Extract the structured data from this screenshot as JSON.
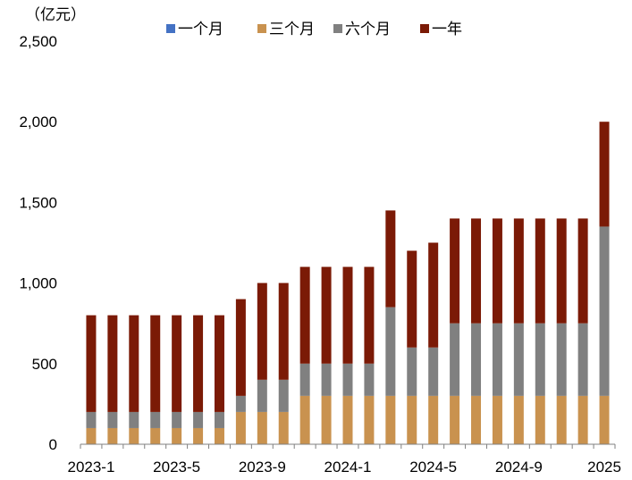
{
  "chart_data": {
    "type": "bar",
    "stacked": true,
    "unit_label": "（亿元）",
    "x": [
      "2023-1",
      "2023-2",
      "2023-3",
      "2023-4",
      "2023-5",
      "2023-6",
      "2023-7",
      "2023-8",
      "2023-9",
      "2023-10",
      "2023-11",
      "2023-12",
      "2024-1",
      "2024-2",
      "2024-3",
      "2024-4",
      "2024-5",
      "2024-6",
      "2024-7",
      "2024-8",
      "2024-9",
      "2024-10",
      "2024-11",
      "2024-12",
      "2025-1"
    ],
    "x_tick_labels": [
      "2023-1",
      "2023-5",
      "2023-9",
      "2024-1",
      "2024-5",
      "2024-9",
      "2025"
    ],
    "ylim": [
      0,
      2500
    ],
    "y_ticks": [
      0,
      500,
      1000,
      1500,
      2000,
      2500
    ],
    "y_tick_labels": [
      "0",
      "500",
      "1,000",
      "1,500",
      "2,000",
      "2,500"
    ],
    "legend_position": "top",
    "series": [
      {
        "name": "一个月",
        "color": "#4472C4",
        "values": [
          0,
          0,
          0,
          0,
          0,
          0,
          0,
          0,
          0,
          0,
          0,
          0,
          0,
          0,
          0,
          0,
          0,
          0,
          0,
          0,
          0,
          0,
          0,
          0,
          0
        ]
      },
      {
        "name": "三个月",
        "color": "#C9924F",
        "values": [
          100,
          100,
          100,
          100,
          100,
          100,
          100,
          200,
          200,
          200,
          300,
          300,
          300,
          300,
          300,
          300,
          300,
          300,
          300,
          300,
          300,
          300,
          300,
          300,
          300
        ]
      },
      {
        "name": "六个月",
        "color": "#808080",
        "values": [
          100,
          100,
          100,
          100,
          100,
          100,
          100,
          100,
          200,
          200,
          200,
          200,
          200,
          200,
          550,
          300,
          300,
          450,
          450,
          450,
          450,
          450,
          450,
          450,
          1050
        ]
      },
      {
        "name": "一年",
        "color": "#7B1A06",
        "values": [
          600,
          600,
          600,
          600,
          600,
          600,
          600,
          600,
          600,
          600,
          600,
          600,
          600,
          600,
          600,
          600,
          650,
          650,
          650,
          650,
          650,
          650,
          650,
          650,
          650
        ]
      }
    ]
  }
}
